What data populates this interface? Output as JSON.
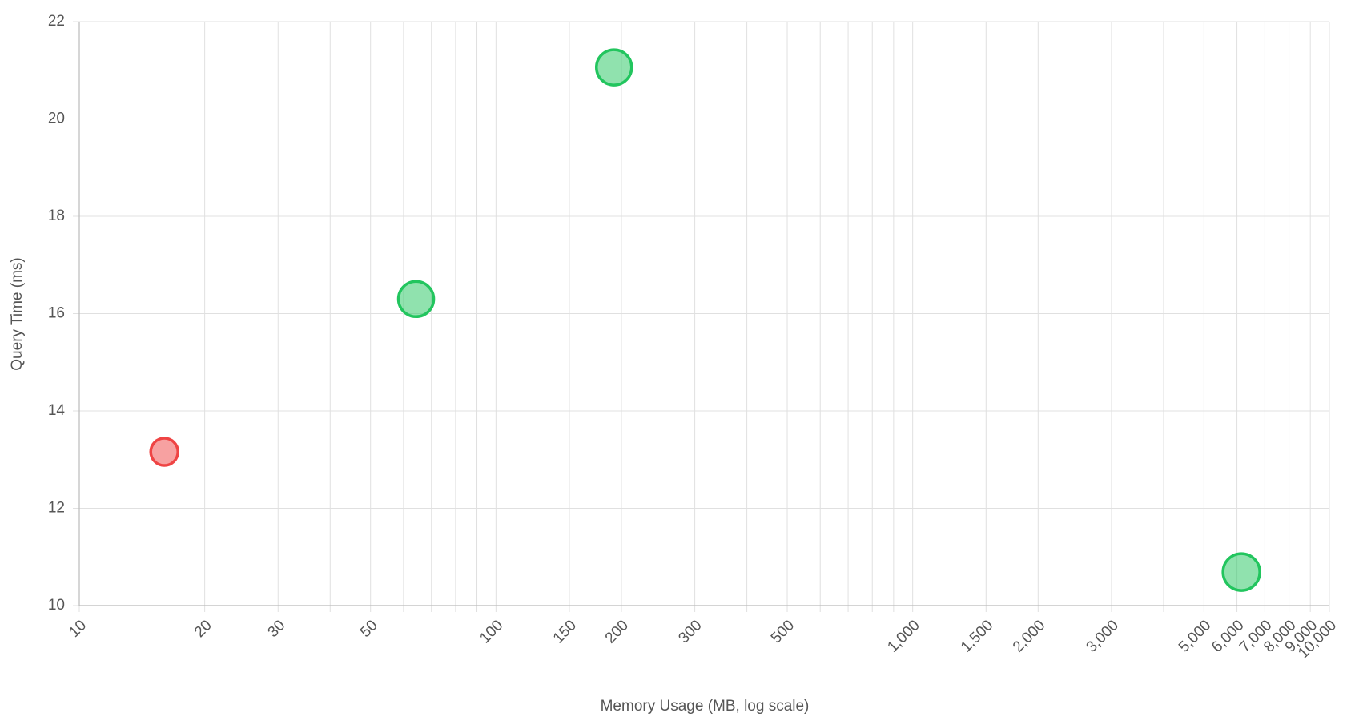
{
  "chart_data": {
    "type": "scatter",
    "x_label": "Memory Usage (MB, log scale)",
    "y_label": "Query Time (ms)",
    "x_log": true,
    "grid": true,
    "x": [
      16,
      64.3,
      192,
      6150
    ],
    "values": [
      13.16,
      16.3,
      21.06,
      10.69
    ],
    "colors": [
      "#ef4444",
      "#22c55e",
      "#22c55e",
      "#22c55e"
    ],
    "xlim": [
      10,
      10000
    ],
    "ylim": [
      10,
      22
    ],
    "xticks": [
      10,
      20,
      30,
      50,
      100,
      150,
      200,
      300,
      500,
      {
        "value": 1000,
        "label": "1,000"
      },
      {
        "value": 1500,
        "label": "1,500"
      },
      {
        "value": 2000,
        "label": "2,000"
      },
      {
        "value": 3000,
        "label": "3,000"
      },
      {
        "value": 5000,
        "label": "5,000"
      },
      {
        "value": 6000,
        "label": "6,000"
      },
      {
        "value": 7000,
        "label": "7,000"
      },
      {
        "value": 8000,
        "label": "8,000"
      },
      {
        "value": 9000,
        "label": "9,000"
      },
      {
        "value": 10000,
        "label": "10,000"
      }
    ],
    "x_minor_grid": [
      40,
      60,
      70,
      80,
      90,
      400,
      600,
      700,
      800,
      900,
      4000
    ],
    "yticks": [
      10,
      12,
      14,
      16,
      18,
      20,
      22
    ]
  }
}
